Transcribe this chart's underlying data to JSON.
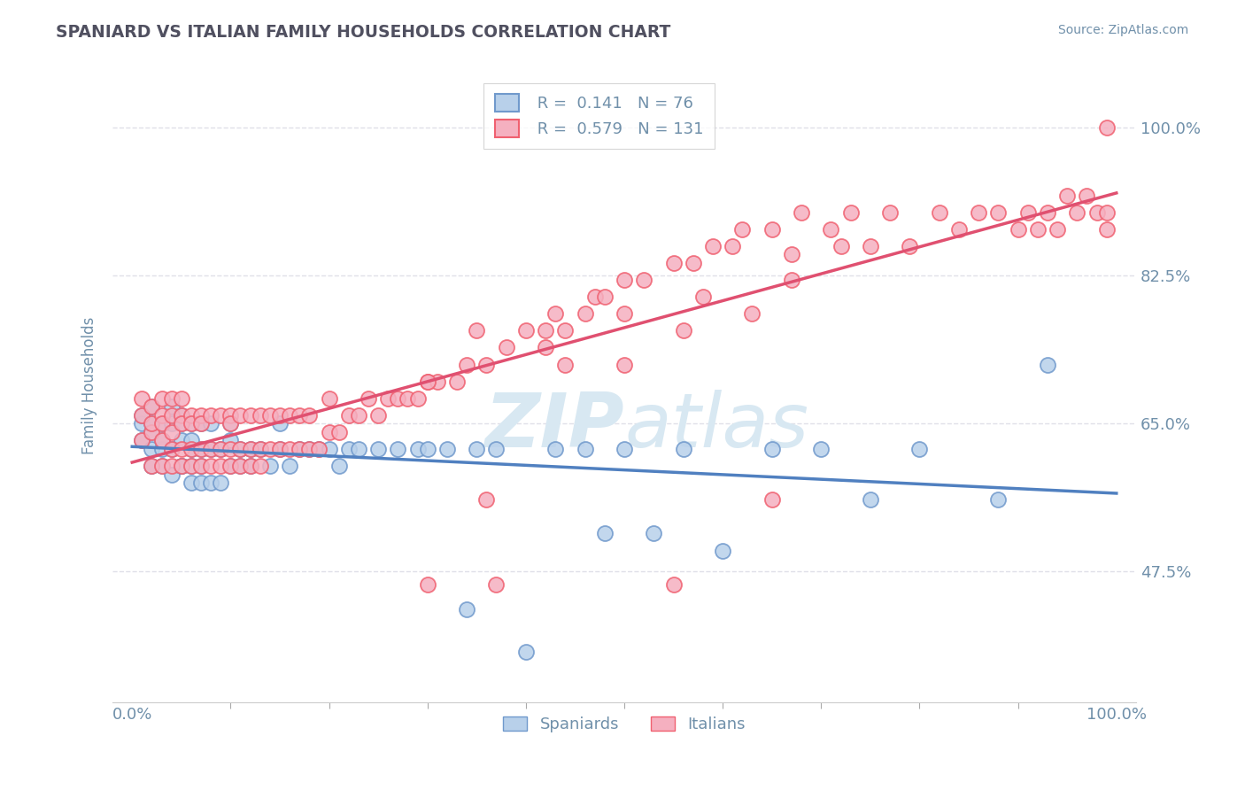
{
  "title": "SPANIARD VS ITALIAN FAMILY HOUSEHOLDS CORRELATION CHART",
  "source_text": "Source: ZipAtlas.com",
  "ylabel": "Family Households",
  "R1": "0.141",
  "N1": "76",
  "R2": "0.579",
  "N2": "131",
  "spaniard_color": "#b8d0ea",
  "italian_color": "#f5b0c0",
  "spaniard_edge_color": "#7099cc",
  "italian_edge_color": "#f06070",
  "spaniard_line_color": "#5080c0",
  "italian_line_color": "#e05070",
  "title_color": "#505060",
  "axis_label_color": "#7090aa",
  "tick_label_color": "#7090aa",
  "background_color": "#ffffff",
  "watermark_color": "#d8e8f2",
  "grid_color": "#e0e0e8",
  "legend_label1": "Spaniards",
  "legend_label2": "Italians",
  "ytick_values": [
    0.475,
    0.65,
    0.825,
    1.0
  ],
  "ytick_labels": [
    "47.5%",
    "65.0%",
    "82.5%",
    "100.0%"
  ],
  "spaniards_x": [
    0.01,
    0.01,
    0.01,
    0.02,
    0.02,
    0.02,
    0.02,
    0.02,
    0.03,
    0.03,
    0.03,
    0.03,
    0.04,
    0.04,
    0.04,
    0.04,
    0.05,
    0.05,
    0.05,
    0.05,
    0.05,
    0.06,
    0.06,
    0.06,
    0.06,
    0.06,
    0.07,
    0.07,
    0.07,
    0.07,
    0.08,
    0.08,
    0.08,
    0.09,
    0.09,
    0.1,
    0.1,
    0.1,
    0.11,
    0.11,
    0.12,
    0.12,
    0.13,
    0.14,
    0.15,
    0.15,
    0.16,
    0.17,
    0.18,
    0.19,
    0.2,
    0.21,
    0.22,
    0.23,
    0.25,
    0.27,
    0.29,
    0.3,
    0.32,
    0.34,
    0.35,
    0.37,
    0.4,
    0.43,
    0.46,
    0.48,
    0.5,
    0.53,
    0.56,
    0.6,
    0.65,
    0.7,
    0.75,
    0.8,
    0.88,
    0.93
  ],
  "spaniards_y": [
    0.65,
    0.63,
    0.66,
    0.62,
    0.64,
    0.67,
    0.6,
    0.65,
    0.62,
    0.65,
    0.6,
    0.63,
    0.62,
    0.65,
    0.59,
    0.67,
    0.6,
    0.63,
    0.66,
    0.6,
    0.65,
    0.58,
    0.62,
    0.65,
    0.6,
    0.63,
    0.58,
    0.62,
    0.65,
    0.6,
    0.58,
    0.62,
    0.65,
    0.58,
    0.62,
    0.6,
    0.63,
    0.65,
    0.6,
    0.62,
    0.6,
    0.62,
    0.62,
    0.6,
    0.62,
    0.65,
    0.6,
    0.62,
    0.62,
    0.62,
    0.62,
    0.6,
    0.62,
    0.62,
    0.62,
    0.62,
    0.62,
    0.62,
    0.62,
    0.43,
    0.62,
    0.62,
    0.38,
    0.62,
    0.62,
    0.52,
    0.62,
    0.52,
    0.62,
    0.5,
    0.62,
    0.62,
    0.56,
    0.62,
    0.56,
    0.72
  ],
  "italians_x": [
    0.01,
    0.01,
    0.01,
    0.02,
    0.02,
    0.02,
    0.02,
    0.03,
    0.03,
    0.03,
    0.03,
    0.03,
    0.04,
    0.04,
    0.04,
    0.04,
    0.04,
    0.05,
    0.05,
    0.05,
    0.05,
    0.05,
    0.06,
    0.06,
    0.06,
    0.06,
    0.07,
    0.07,
    0.07,
    0.07,
    0.08,
    0.08,
    0.08,
    0.09,
    0.09,
    0.09,
    0.1,
    0.1,
    0.1,
    0.1,
    0.11,
    0.11,
    0.11,
    0.12,
    0.12,
    0.12,
    0.13,
    0.13,
    0.13,
    0.14,
    0.14,
    0.15,
    0.15,
    0.16,
    0.16,
    0.17,
    0.17,
    0.18,
    0.18,
    0.19,
    0.2,
    0.2,
    0.21,
    0.22,
    0.23,
    0.24,
    0.25,
    0.26,
    0.27,
    0.28,
    0.29,
    0.3,
    0.31,
    0.33,
    0.34,
    0.36,
    0.38,
    0.4,
    0.42,
    0.44,
    0.46,
    0.47,
    0.48,
    0.5,
    0.52,
    0.55,
    0.57,
    0.59,
    0.61,
    0.62,
    0.65,
    0.67,
    0.68,
    0.71,
    0.73,
    0.75,
    0.77,
    0.79,
    0.82,
    0.84,
    0.86,
    0.88,
    0.9,
    0.91,
    0.92,
    0.93,
    0.94,
    0.95,
    0.96,
    0.97,
    0.98,
    0.99,
    0.99,
    0.99,
    0.35,
    0.43,
    0.5,
    0.58,
    0.67,
    0.72,
    0.5,
    0.56,
    0.63,
    0.3,
    0.42,
    0.36,
    0.44,
    0.3,
    0.37,
    0.65,
    0.55
  ],
  "italians_y": [
    0.66,
    0.63,
    0.68,
    0.64,
    0.67,
    0.6,
    0.65,
    0.63,
    0.66,
    0.6,
    0.65,
    0.68,
    0.62,
    0.66,
    0.6,
    0.64,
    0.68,
    0.62,
    0.66,
    0.6,
    0.65,
    0.68,
    0.62,
    0.66,
    0.6,
    0.65,
    0.62,
    0.66,
    0.6,
    0.65,
    0.62,
    0.66,
    0.6,
    0.62,
    0.66,
    0.6,
    0.62,
    0.66,
    0.6,
    0.65,
    0.62,
    0.66,
    0.6,
    0.62,
    0.66,
    0.6,
    0.62,
    0.66,
    0.6,
    0.62,
    0.66,
    0.62,
    0.66,
    0.62,
    0.66,
    0.62,
    0.66,
    0.62,
    0.66,
    0.62,
    0.64,
    0.68,
    0.64,
    0.66,
    0.66,
    0.68,
    0.66,
    0.68,
    0.68,
    0.68,
    0.68,
    0.7,
    0.7,
    0.7,
    0.72,
    0.72,
    0.74,
    0.76,
    0.76,
    0.76,
    0.78,
    0.8,
    0.8,
    0.82,
    0.82,
    0.84,
    0.84,
    0.86,
    0.86,
    0.88,
    0.88,
    0.85,
    0.9,
    0.88,
    0.9,
    0.86,
    0.9,
    0.86,
    0.9,
    0.88,
    0.9,
    0.9,
    0.88,
    0.9,
    0.88,
    0.9,
    0.88,
    0.92,
    0.9,
    0.92,
    0.9,
    1.0,
    0.9,
    0.88,
    0.76,
    0.78,
    0.78,
    0.8,
    0.82,
    0.86,
    0.72,
    0.76,
    0.78,
    0.7,
    0.74,
    0.56,
    0.72,
    0.46,
    0.46,
    0.56,
    0.46
  ]
}
